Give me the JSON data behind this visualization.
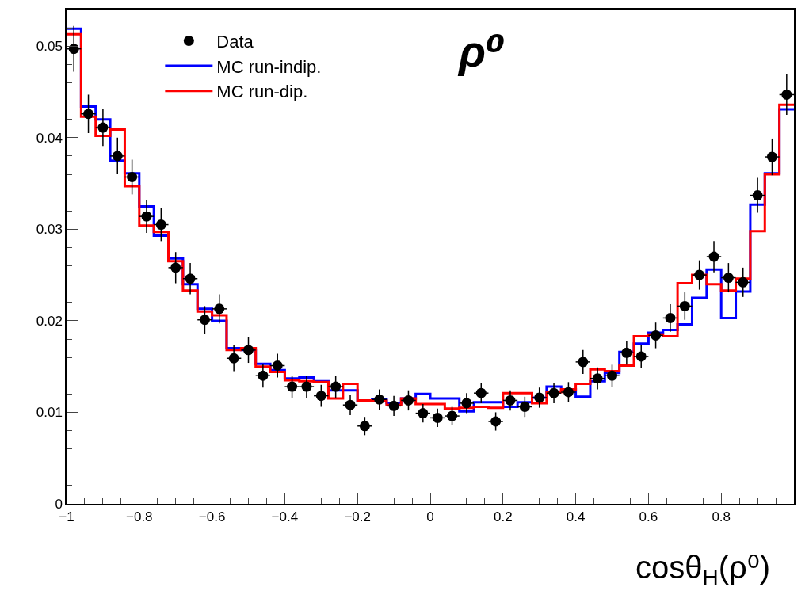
{
  "chart_data": {
    "type": "histogram",
    "xlabel": "cosθ$_{H}$(ρ⁰)",
    "annotations": [
      "ρ⁰"
    ],
    "bins": [
      -1,
      -0.96,
      -0.92,
      -0.88,
      -0.84,
      -0.8,
      -0.76,
      -0.72,
      -0.68,
      -0.64,
      -0.6,
      -0.56,
      -0.52,
      -0.48,
      -0.44,
      -0.4,
      -0.36,
      -0.32,
      -0.28,
      -0.24,
      -0.2,
      -0.16,
      -0.12,
      -0.08,
      -0.04,
      0,
      0.04,
      0.08,
      0.12,
      0.16,
      0.2,
      0.24,
      0.28,
      0.32,
      0.36,
      0.4,
      0.44,
      0.48,
      0.52,
      0.56,
      0.6,
      0.64,
      0.68,
      0.72,
      0.76,
      0.8,
      0.84,
      0.88,
      0.92,
      0.96,
      1
    ],
    "series": [
      {
        "name": "Data",
        "type": "scatter",
        "color": "#000000",
        "marker": "circle",
        "x": [
          -0.98,
          -0.94,
          -0.9,
          -0.86,
          -0.82,
          -0.78,
          -0.74,
          -0.7,
          -0.66,
          -0.62,
          -0.58,
          -0.54,
          -0.5,
          -0.46,
          -0.42,
          -0.38,
          -0.34,
          -0.3,
          -0.26,
          -0.22,
          -0.18,
          -0.14,
          -0.1,
          -0.06,
          -0.02,
          0.02,
          0.06,
          0.1,
          0.14,
          0.18,
          0.22,
          0.26,
          0.3,
          0.34,
          0.38,
          0.42,
          0.46,
          0.5,
          0.54,
          0.58,
          0.62,
          0.66,
          0.7,
          0.74,
          0.78,
          0.82,
          0.86,
          0.9,
          0.94,
          0.98
        ],
        "values": [
          0.0497,
          0.0426,
          0.0411,
          0.038,
          0.0357,
          0.0314,
          0.0305,
          0.0258,
          0.0246,
          0.0201,
          0.0213,
          0.0159,
          0.0168,
          0.014,
          0.0151,
          0.0128,
          0.0128,
          0.0118,
          0.0128,
          0.0108,
          0.0085,
          0.0114,
          0.0107,
          0.0113,
          0.0099,
          0.0094,
          0.0096,
          0.011,
          0.0121,
          0.009,
          0.0113,
          0.0106,
          0.0116,
          0.0121,
          0.0122,
          0.0155,
          0.0137,
          0.014,
          0.0165,
          0.0161,
          0.0184,
          0.0203,
          0.0216,
          0.025,
          0.027,
          0.0247,
          0.0242,
          0.0337,
          0.0379,
          0.0447
        ],
        "xerrors": [
          0.02,
          0.02,
          0.02,
          0.02,
          0.02,
          0.02,
          0.02,
          0.02,
          0.02,
          0.02,
          0.02,
          0.02,
          0.02,
          0.02,
          0.02,
          0.02,
          0.02,
          0.02,
          0.02,
          0.02,
          0.02,
          0.02,
          0.02,
          0.02,
          0.02,
          0.02,
          0.02,
          0.02,
          0.02,
          0.02,
          0.02,
          0.02,
          0.02,
          0.02,
          0.02,
          0.02,
          0.02,
          0.02,
          0.02,
          0.02,
          0.02,
          0.02,
          0.02,
          0.02,
          0.02,
          0.02,
          0.02,
          0.02,
          0.02,
          0.02
        ],
        "errors": [
          0.0025,
          0.0021,
          0.002,
          0.002,
          0.0019,
          0.0018,
          0.0018,
          0.0017,
          0.0017,
          0.0015,
          0.0016,
          0.0014,
          0.0014,
          0.0013,
          0.0013,
          0.0012,
          0.0012,
          0.0012,
          0.0012,
          0.0011,
          0.001,
          0.0011,
          0.0011,
          0.0011,
          0.001,
          0.001,
          0.001,
          0.0011,
          0.0011,
          0.001,
          0.0011,
          0.0011,
          0.0011,
          0.0011,
          0.0011,
          0.0013,
          0.0012,
          0.0012,
          0.0013,
          0.0013,
          0.0014,
          0.0015,
          0.0015,
          0.0016,
          0.0017,
          0.0016,
          0.0016,
          0.0019,
          0.002,
          0.0022
        ]
      },
      {
        "name": "MC run-indip.",
        "color": "#0000ff",
        "values": [
          0.0519,
          0.0434,
          0.042,
          0.0375,
          0.0361,
          0.0325,
          0.0293,
          0.0268,
          0.024,
          0.0213,
          0.02,
          0.017,
          0.0168,
          0.0153,
          0.0146,
          0.0137,
          0.0138,
          0.0134,
          0.0124,
          0.0124,
          0.0113,
          0.0114,
          0.011,
          0.0115,
          0.012,
          0.0115,
          0.0115,
          0.0101,
          0.0111,
          0.0111,
          0.0106,
          0.0111,
          0.0116,
          0.0128,
          0.0125,
          0.0117,
          0.0134,
          0.0143,
          0.0166,
          0.0175,
          0.0187,
          0.019,
          0.0196,
          0.0225,
          0.0256,
          0.0203,
          0.0232,
          0.0327,
          0.0361,
          0.0431
        ]
      },
      {
        "name": "MC run-dip.",
        "color": "#ff0000",
        "values": [
          0.0513,
          0.0423,
          0.0402,
          0.0409,
          0.0347,
          0.0304,
          0.0297,
          0.0265,
          0.0233,
          0.021,
          0.0206,
          0.0168,
          0.017,
          0.015,
          0.0144,
          0.0135,
          0.0134,
          0.0133,
          0.0115,
          0.0131,
          0.0113,
          0.0113,
          0.0108,
          0.0115,
          0.0109,
          0.0109,
          0.0104,
          0.0105,
          0.0106,
          0.0105,
          0.0121,
          0.0121,
          0.011,
          0.0122,
          0.0125,
          0.0131,
          0.0147,
          0.0145,
          0.0151,
          0.0183,
          0.0185,
          0.0183,
          0.0241,
          0.025,
          0.024,
          0.0233,
          0.0246,
          0.0298,
          0.036,
          0.0436
        ]
      }
    ],
    "xlim": [
      -1,
      1
    ],
    "ylim": [
      0,
      0.054
    ],
    "xticks": [
      {
        "value": -1,
        "label": "−1"
      },
      {
        "value": -0.8,
        "label": "−0.8"
      },
      {
        "value": -0.6,
        "label": "−0.6"
      },
      {
        "value": -0.4,
        "label": "−0.4"
      },
      {
        "value": -0.2,
        "label": "−0.2"
      },
      0,
      0.2,
      0.4,
      0.6,
      0.8,
      {
        "value": 1,
        "label": null
      }
    ],
    "yticks": [
      0,
      0.01,
      0.02,
      0.03,
      0.04,
      0.05
    ],
    "legend": "top left",
    "grid": false
  }
}
